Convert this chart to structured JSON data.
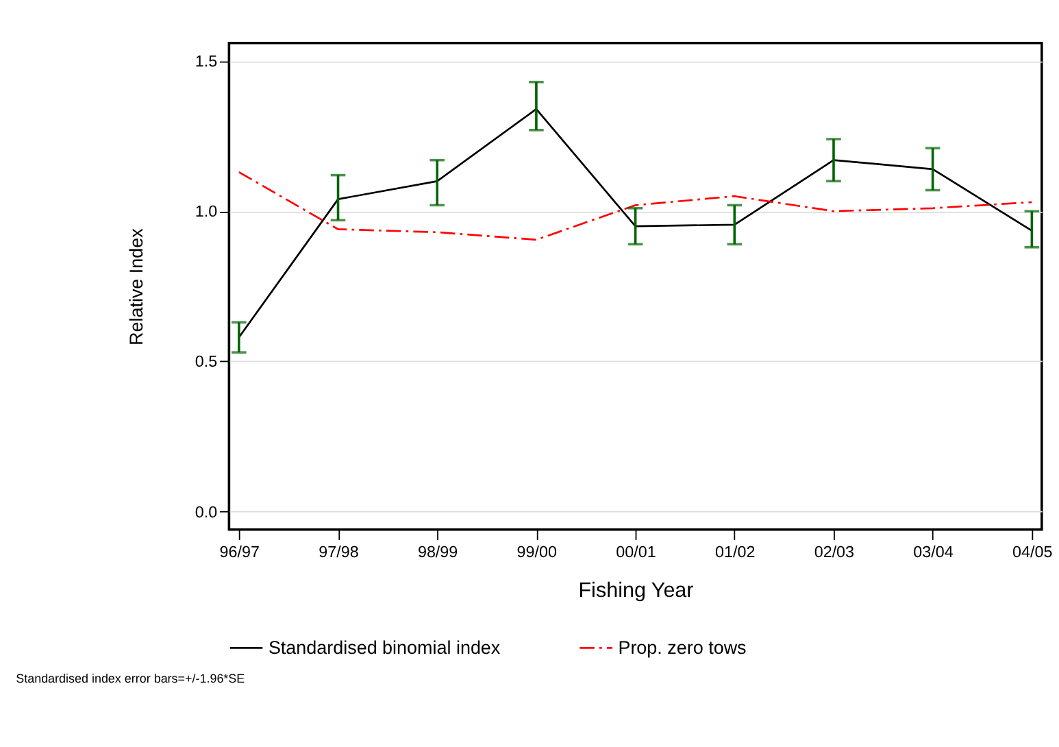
{
  "chart_data": {
    "type": "line",
    "xlabel": "Fishing Year",
    "ylabel": "Relative Index",
    "categories": [
      "96/97",
      "97/98",
      "98/99",
      "99/00",
      "00/01",
      "01/02",
      "02/03",
      "03/04",
      "04/05"
    ],
    "series": [
      {
        "name": "Standardised binomial index",
        "color": "#000000",
        "line_style": "solid",
        "values": [
          0.58,
          1.04,
          1.1,
          1.34,
          0.95,
          0.955,
          1.17,
          1.14,
          0.935
        ],
        "errors": [
          [
            0.53,
            0.63
          ],
          [
            0.97,
            1.12
          ],
          [
            1.02,
            1.17
          ],
          [
            1.27,
            1.43
          ],
          [
            0.89,
            1.01
          ],
          [
            0.89,
            1.02
          ],
          [
            1.1,
            1.24
          ],
          [
            1.07,
            1.21
          ],
          [
            0.88,
            1.0
          ]
        ]
      },
      {
        "name": "Prop. zero tows",
        "color": "#ff0000",
        "line_style": "dashdot",
        "values": [
          1.13,
          0.94,
          0.93,
          0.905,
          1.02,
          1.05,
          1.0,
          1.01,
          1.03
        ]
      }
    ],
    "ylim": [
      -0.06,
      1.56
    ],
    "yticks": [
      {
        "value": 0,
        "label": "0.0"
      },
      0.5,
      {
        "value": 1,
        "label": "1.0"
      },
      1.5
    ],
    "grid": "y",
    "legend": "bottom",
    "marker": "none",
    "annotations": [
      "Standardised index error bars=+/-1.96*SE"
    ]
  }
}
